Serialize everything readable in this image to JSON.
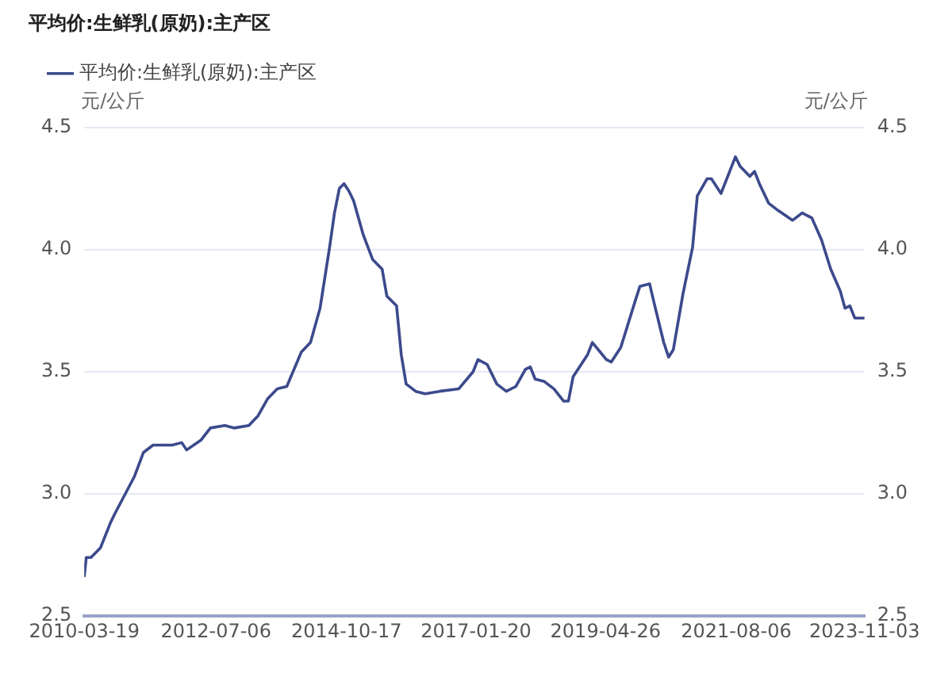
{
  "chart_data": {
    "type": "line",
    "title": "平均价:生鲜乳(原奶):主产区",
    "ylabel": "元/公斤",
    "y2label": "元/公斤",
    "xlim": [
      "2010-03-19",
      "2023-11-03"
    ],
    "xticks": [
      "2010-03-19",
      "2012-07-06",
      "2014-10-17",
      "2017-01-20",
      "2019-04-26",
      "2021-08-06",
      "2023-11-03"
    ],
    "ylim": [
      2.5,
      4.5
    ],
    "yticks": [
      2.5,
      {
        "value": 3,
        "label": "3.0"
      },
      3.5,
      {
        "value": 4,
        "label": "4.0"
      },
      4.5
    ],
    "y2lim": [
      2.5,
      4.5
    ],
    "y2ticks": [
      2.5,
      {
        "value": 3,
        "label": "3.0"
      },
      3.5,
      {
        "value": 4,
        "label": "4.0"
      },
      4.5
    ],
    "grid": "y",
    "legend": "top left",
    "marker": "none",
    "line_style": "solid",
    "series": [
      {
        "name": "平均价:生鲜乳(原奶):主产区",
        "color": "#3c4a8c",
        "x": [
          "2010-03-19",
          "2010-04",
          "2010-05",
          "2010-07",
          "2010-09",
          "2010-10",
          "2011-02",
          "2011-04",
          "2011-06",
          "2011-10",
          "2011-12",
          "2012-01",
          "2012-04",
          "2012-06",
          "2012-09",
          "2012-11",
          "2013-02",
          "2013-04",
          "2013-06",
          "2013-08",
          "2013-10",
          "2014-01",
          "2014-03",
          "2014-05",
          "2014-07",
          "2014-08",
          "2014-09",
          "2014-10",
          "2014-11",
          "2014-12",
          "2015-02",
          "2015-04",
          "2015-06",
          "2015-07",
          "2015-09",
          "2015-10",
          "2015-11",
          "2016-01",
          "2016-03",
          "2016-06",
          "2016-10",
          "2017-01",
          "2017-02",
          "2017-04",
          "2017-06",
          "2017-08",
          "2017-10",
          "2017-12",
          "2018-01",
          "2018-02",
          "2018-04",
          "2018-06",
          "2018-08",
          "2018-09",
          "2018-10",
          "2019-01",
          "2019-02",
          "2019-05",
          "2019-06",
          "2019-08",
          "2019-11",
          "2019-12",
          "2020-02",
          "2020-03",
          "2020-05",
          "2020-06",
          "2020-07",
          "2020-09",
          "2020-11",
          "2020-12",
          "2021-02",
          "2021-03",
          "2021-05",
          "2021-06",
          "2021-08",
          "2021-09",
          "2021-11",
          "2021-12",
          "2022-01",
          "2022-03",
          "2022-05",
          "2022-08",
          "2022-10",
          "2022-12",
          "2023-02",
          "2023-04",
          "2023-06",
          "2023-07",
          "2023-08",
          "2023-09",
          "2023-11-03"
        ],
        "values": [
          2.66,
          2.74,
          2.74,
          2.78,
          2.88,
          2.92,
          3.07,
          3.17,
          3.2,
          3.2,
          3.21,
          3.18,
          3.22,
          3.27,
          3.28,
          3.27,
          3.28,
          3.32,
          3.39,
          3.43,
          3.44,
          3.58,
          3.62,
          3.76,
          4.01,
          4.15,
          4.25,
          4.27,
          4.24,
          4.2,
          4.06,
          3.96,
          3.92,
          3.81,
          3.77,
          3.57,
          3.45,
          3.42,
          3.41,
          3.42,
          3.43,
          3.5,
          3.55,
          3.53,
          3.45,
          3.42,
          3.44,
          3.51,
          3.52,
          3.47,
          3.46,
          3.43,
          3.38,
          3.38,
          3.48,
          3.57,
          3.62,
          3.55,
          3.54,
          3.6,
          3.79,
          3.85,
          3.86,
          3.78,
          3.62,
          3.56,
          3.59,
          3.82,
          4.01,
          4.22,
          4.29,
          4.29,
          4.23,
          4.28,
          4.38,
          4.34,
          4.3,
          4.32,
          4.27,
          4.19,
          4.16,
          4.12,
          4.15,
          4.13,
          4.04,
          3.92,
          3.83,
          3.76,
          3.77,
          3.72,
          3.72
        ]
      }
    ]
  }
}
